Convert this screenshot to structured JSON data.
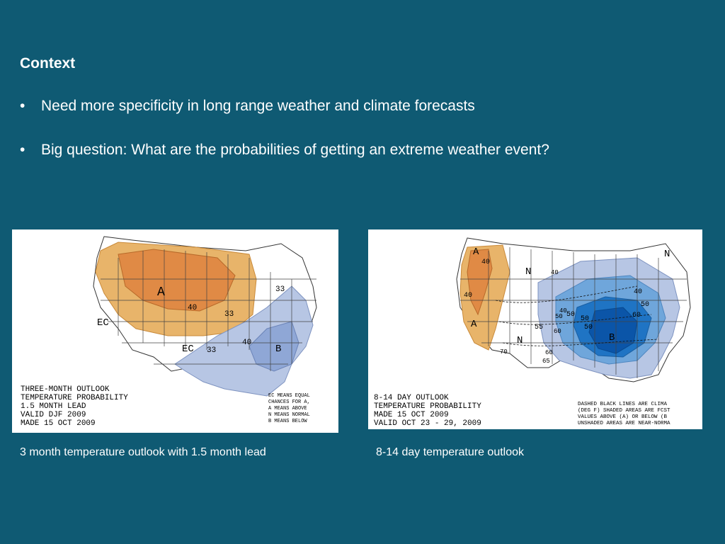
{
  "heading": "Context",
  "bullets": [
    "Need more specificity in long range weather and climate forecasts",
    "Big question:  What are the probabilities of getting an extreme weather event?"
  ],
  "bullet_symbol": "•",
  "maps": [
    {
      "title_lines": [
        "THREE-MONTH OUTLOOK",
        "TEMPERATURE PROBABILITY",
        "1.5 MONTH LEAD",
        "VALID DJF 2009",
        "MADE 15 OCT 2009"
      ],
      "legend_lines": [
        "EC MEANS EQUAL",
        "CHANCES FOR A,",
        "A MEANS ABOVE",
        "N MEANS NORMAL",
        "B MEANS BELOW"
      ],
      "labels": [
        "A",
        "B",
        "EC",
        "EC",
        "40",
        "33",
        "33",
        "33",
        "40"
      ]
    },
    {
      "title_lines": [
        "8-14 DAY OUTLOOK",
        "TEMPERATURE PROBABILITY",
        "MADE  15 OCT 2009",
        "VALID  OCT 23 - 29, 2009"
      ],
      "legend_lines": [
        "DASHED BLACK LINES ARE CLIMA",
        "(DEG F) SHADED AREAS ARE FCST",
        "VALUES ABOVE (A) OR BELOW (B",
        "UNSHADED AREAS ARE NEAR-NORMA"
      ],
      "labels": [
        "A",
        "A",
        "N",
        "N",
        "N",
        "B",
        "40",
        "40",
        "40",
        "40",
        "50",
        "50",
        "60",
        "50",
        "50",
        "40",
        "50",
        "60",
        "55",
        "60",
        "65",
        "70"
      ]
    }
  ],
  "captions": [
    "3 month temperature outlook with 1.5 month lead",
    "8-14 day temperature outlook"
  ],
  "colors": {
    "background": "#0f5a73",
    "above_light": "#e8b46a",
    "above_dark": "#e08a45",
    "below_light": "#b7c6e4",
    "below_mid": "#6fa6db",
    "below_dark": "#1f74c4",
    "below_darkest": "#0b55a8"
  }
}
